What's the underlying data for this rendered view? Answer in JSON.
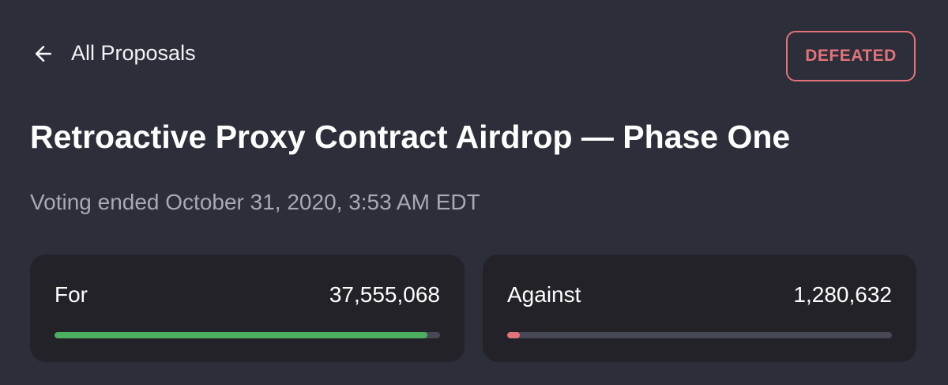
{
  "nav": {
    "back_label": "All Proposals",
    "back_icon": "arrow-left-icon"
  },
  "status": {
    "label": "DEFEATED",
    "color": "#e3737a"
  },
  "proposal": {
    "title": "Retroactive Proxy Contract Airdrop — Phase One",
    "voting_info": "Voting ended October 31, 2020, 3:53 AM EDT"
  },
  "votes": [
    {
      "label": "For",
      "value": "37,555,068",
      "percent": 96.7,
      "color": "#4cae5f"
    },
    {
      "label": "Against",
      "value": "1,280,632",
      "percent": 3.3,
      "color": "#e3737a"
    }
  ]
}
